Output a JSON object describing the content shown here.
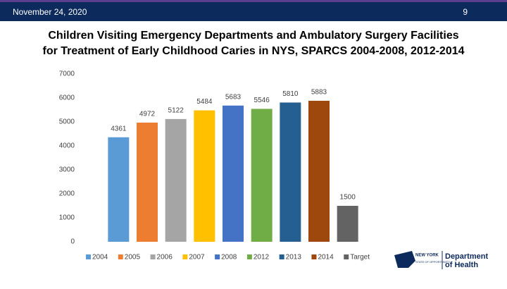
{
  "header": {
    "date": "November 24, 2020",
    "page": "9"
  },
  "logo": {
    "state": "NEW YORK",
    "tagline": "STATE OF OPPORTUNITY.",
    "dept_line1": "Department",
    "dept_line2": "of Health"
  },
  "chart_data": {
    "type": "bar",
    "title": [
      "Children Visiting Emergency Departments and Ambulatory Surgery Facilities",
      "for Treatment of Early Childhood Caries in NYS, SPARCS 2004-2008, 2012-2014"
    ],
    "categories": [
      "2004",
      "2005",
      "2006",
      "2007",
      "2008",
      "2012",
      "2013",
      "2014",
      "Target"
    ],
    "values": [
      4361,
      4972,
      5122,
      5484,
      5683,
      5546,
      5810,
      5883,
      1500
    ],
    "colors": [
      "#5b9bd5",
      "#ed7d31",
      "#a5a5a5",
      "#ffc000",
      "#4472c4",
      "#70ad47",
      "#255e91",
      "#9e480e",
      "#636363"
    ],
    "ylim": [
      0,
      7000
    ],
    "yticks": [
      0,
      1000,
      2000,
      3000,
      4000,
      5000,
      6000,
      7000
    ],
    "grid": false,
    "legend": "bottom"
  }
}
